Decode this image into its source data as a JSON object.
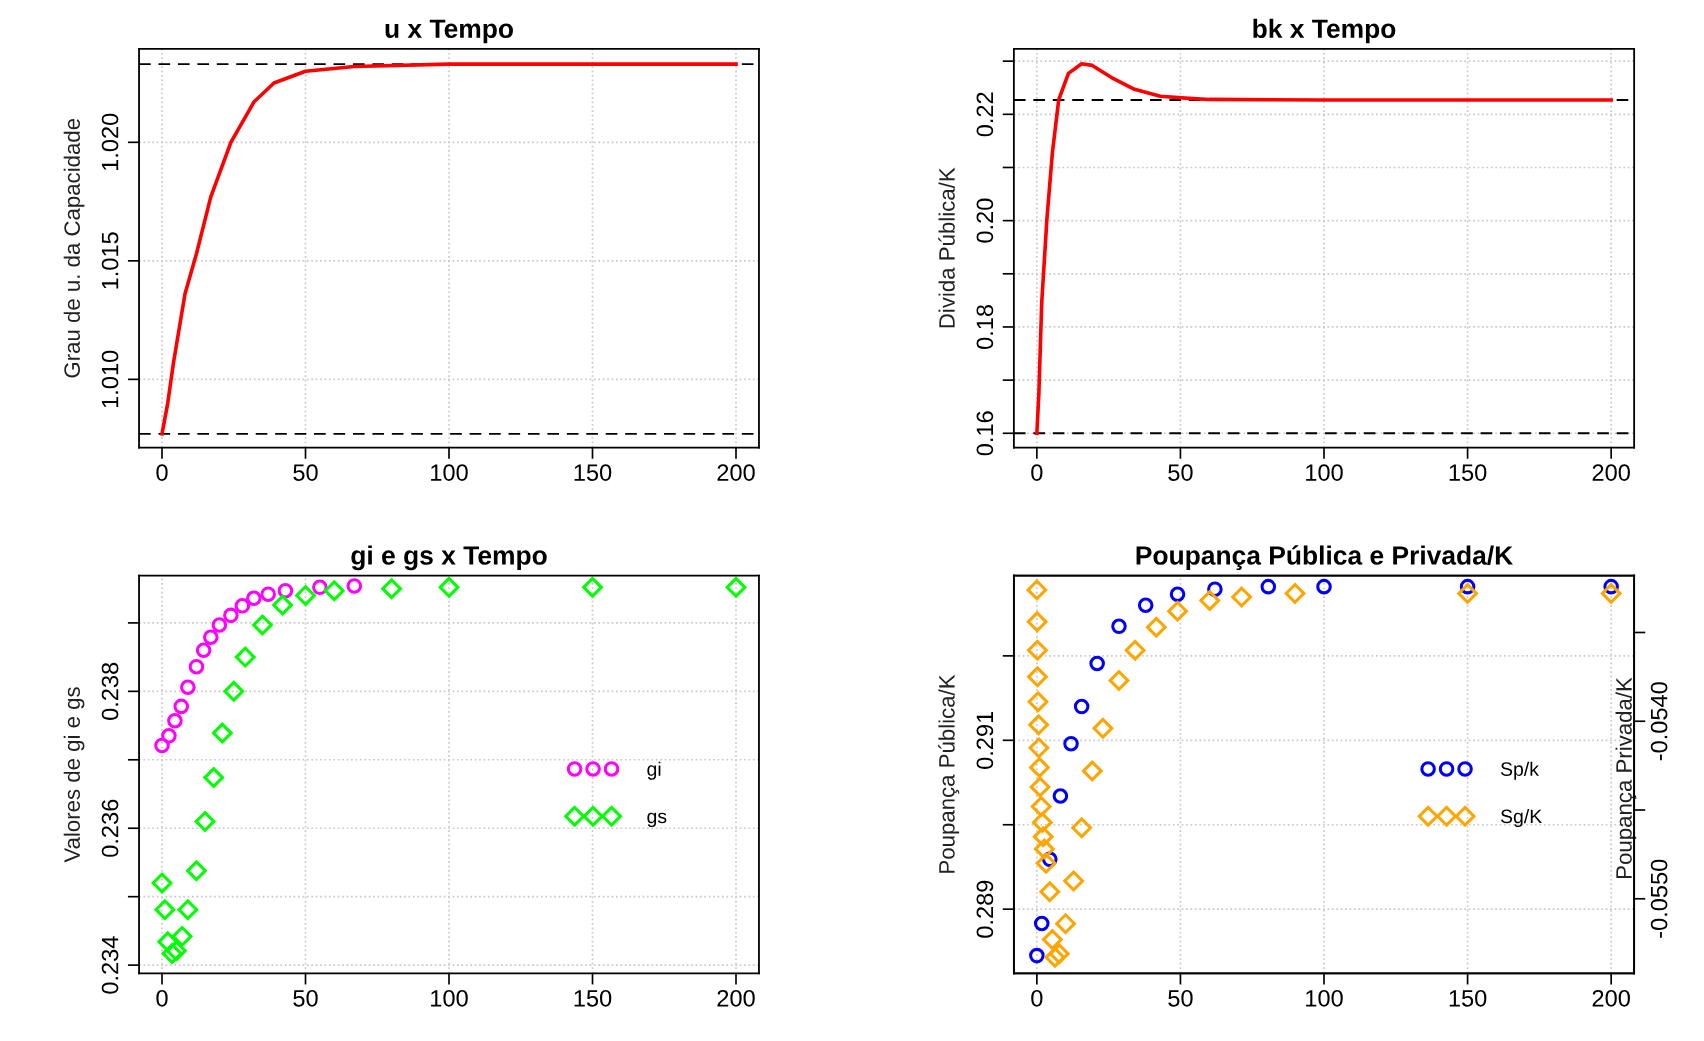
{
  "chart_data": [
    {
      "type": "line",
      "title": "u x Tempo",
      "ylabel": "Grau de u. da Capacidade",
      "xlim": [
        -8,
        208
      ],
      "xticks": [
        0,
        50,
        100,
        150,
        200
      ],
      "ylim": [
        1.00712,
        1.02394
      ],
      "yticks": [
        {
          "value": 1.01,
          "label": "1.010"
        },
        1.015,
        {
          "value": 1.02,
          "label": "1.020"
        }
      ],
      "grid": true,
      "ref_lines": [
        {
          "axis": "y",
          "value": 1.0077,
          "color": "#000000",
          "line_style": "dashed"
        },
        {
          "axis": "y",
          "value": 1.0233,
          "color": "#000000",
          "line_style": "dashed"
        }
      ],
      "series": [
        {
          "color": "#ff0000",
          "x": [
            0,
            2,
            4,
            8,
            12,
            17,
            24,
            32,
            39,
            50,
            67,
            100,
            150,
            200
          ],
          "values": [
            1.0077,
            1.009,
            1.0107,
            1.0136,
            1.0153,
            1.0177,
            1.02,
            1.0217,
            1.0225,
            1.023,
            1.0232,
            1.0233,
            1.0233,
            1.0233
          ]
        }
      ]
    },
    {
      "type": "line",
      "title": "bk x Tempo",
      "ylabel": "Divida Pública/K",
      "xlim": [
        -8,
        208
      ],
      "xticks": [
        0,
        50,
        100,
        150,
        200
      ],
      "ylim": [
        0.1573,
        0.2323
      ],
      "yticks": [
        0.16,
        {
          "value": 0.17,
          "label": null
        },
        0.18,
        {
          "value": 0.19,
          "label": null
        },
        {
          "value": 0.2,
          "label": "0.20"
        },
        {
          "value": 0.21,
          "label": null
        },
        0.22,
        {
          "value": 0.23,
          "label": null
        }
      ],
      "grid": true,
      "ref_lines": [
        {
          "axis": "y",
          "value": 0.16,
          "color": "#000000",
          "line_style": "dashed"
        },
        {
          "axis": "y",
          "value": 0.2227,
          "color": "#000000",
          "line_style": "dashed"
        }
      ],
      "series": [
        {
          "color": "#ff0000",
          "x": [
            0,
            0.7,
            1.7,
            3.5,
            5.4,
            7.6,
            11,
            15.6,
            19.3,
            26.7,
            34,
            43,
            53,
            60,
            100,
            150,
            200
          ],
          "values": [
            0.16,
            0.1675,
            0.1846,
            0.2003,
            0.2127,
            0.2227,
            0.2277,
            0.2295,
            0.2292,
            0.2267,
            0.2247,
            0.2234,
            0.223,
            0.2228,
            0.2227,
            0.2227,
            0.2227
          ]
        }
      ]
    },
    {
      "type": "scatter",
      "title": "gi e gs x Tempo",
      "ylabel": "Valores de gi e gs",
      "xlim": [
        -8,
        208
      ],
      "xticks": [
        0,
        50,
        100,
        150,
        200
      ],
      "ylim": [
        0.23388,
        0.23969
      ],
      "yticks": [
        0.234,
        {
          "value": 0.235,
          "label": null
        },
        0.236,
        {
          "value": 0.237,
          "label": null
        },
        0.238,
        {
          "value": 0.239,
          "label": null
        }
      ],
      "grid": true,
      "legend": "right",
      "series": [
        {
          "name": "gi",
          "color": "#ff00ff",
          "marker": "circle",
          "x": [
            0,
            2.4,
            4.5,
            6.7,
            9,
            12,
            14.5,
            17,
            20,
            24,
            28,
            32,
            37,
            43,
            55,
            67
          ],
          "values": [
            0.23721,
            0.23735,
            0.23757,
            0.23778,
            0.23806,
            0.23836,
            0.2386,
            0.23879,
            0.23897,
            0.23911,
            0.23925,
            0.23936,
            0.23942,
            0.23947,
            0.23952,
            0.23954
          ]
        },
        {
          "name": "gs",
          "color": "#00ff00",
          "marker": "diamond",
          "x": [
            0,
            1,
            2,
            3.5,
            5,
            7,
            9,
            12,
            15,
            18,
            21,
            25,
            29,
            35,
            42,
            50,
            60,
            80,
            100,
            150,
            200
          ],
          "values": [
            0.2352,
            0.23481,
            0.23434,
            0.23417,
            0.23421,
            0.23442,
            0.23481,
            0.23538,
            0.2361,
            0.23674,
            0.23739,
            0.238,
            0.2385,
            0.23897,
            0.23926,
            0.2394,
            0.23947,
            0.2395,
            0.23952,
            0.23952,
            0.23952
          ]
        }
      ]
    },
    {
      "type": "scatter",
      "title": "Poupança Pública e Privada/K",
      "ylabel": "Poupança Pública/K",
      "y2label": "Poupança Privada/K",
      "xlim": [
        -8,
        208
      ],
      "xticks": [
        0,
        50,
        100,
        150,
        200
      ],
      "ylim": [
        0.28824,
        0.29295
      ],
      "yticks": [
        0.289,
        {
          "value": 0.29,
          "label": null
        },
        0.291,
        {
          "value": 0.292,
          "label": null
        }
      ],
      "y2lim": [
        -0.05542,
        -0.05318
      ],
      "y2ticks": [
        {
          "value": -0.0535,
          "label": null
        },
        {
          "value": -0.054,
          "label": "-0.0540"
        },
        {
          "value": -0.0545,
          "label": null
        },
        {
          "value": -0.055,
          "label": "-0.0550"
        }
      ],
      "grid": true,
      "legend": "right",
      "series": [
        {
          "name": "Sp/k",
          "color": "#0000ff",
          "marker": "circle",
          "x": [
            0,
            1.7,
            4.5,
            8.2,
            11.9,
            15.6,
            21,
            28.6,
            37.9,
            49,
            62,
            80.6,
            100,
            150,
            200
          ],
          "values": [
            0.28845,
            0.28883,
            0.28959,
            0.29034,
            0.29096,
            0.2914,
            0.29191,
            0.29235,
            0.2926,
            0.29273,
            0.29279,
            0.29282,
            0.29282,
            0.29282,
            0.29282
          ]
        },
        {
          "name": "Sg/K",
          "color": "#ffa500",
          "marker": "diamond",
          "axis": "y2",
          "x": [
            0,
            0.1,
            0.2,
            0.2,
            0.4,
            0.6,
            0.7,
            0.9,
            1.1,
            1.5,
            1.9,
            2.2,
            2.6,
            3.2,
            4.5,
            5.4,
            6.3,
            7.8,
            10.0,
            12.8,
            15.6,
            19.3,
            23.0,
            28.6,
            34.2,
            41.6,
            49.0,
            60.2,
            71.3,
            89.9,
            150,
            200
          ],
          "values": [
            -0.05326,
            -0.05344,
            -0.0536,
            -0.05375,
            -0.05389,
            -0.05402,
            -0.05415,
            -0.05426,
            -0.05437,
            -0.05448,
            -0.05457,
            -0.05465,
            -0.05472,
            -0.0548,
            -0.05496,
            -0.05523,
            -0.05533,
            -0.05531,
            -0.05514,
            -0.0549,
            -0.0546,
            -0.05428,
            -0.05404,
            -0.05377,
            -0.0536,
            -0.05347,
            -0.05338,
            -0.05332,
            -0.0533,
            -0.05328,
            -0.05328,
            -0.05328
          ]
        }
      ]
    }
  ]
}
